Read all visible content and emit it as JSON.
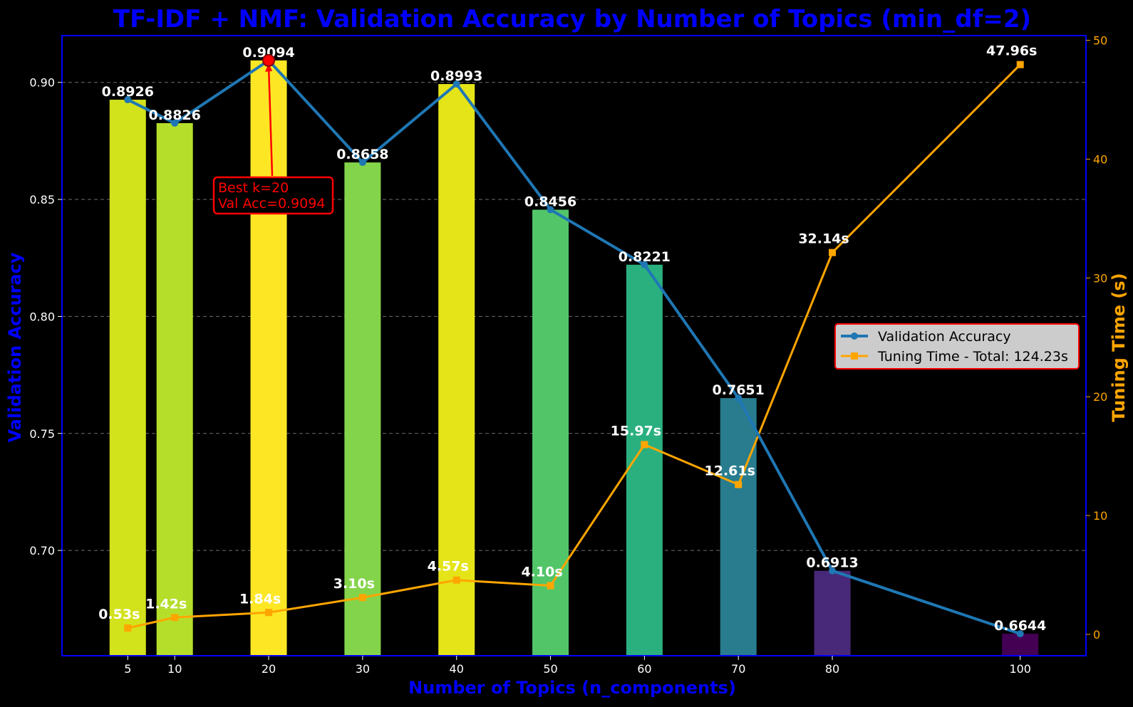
{
  "chart_data": {
    "type": "bar",
    "title": "TF-IDF + NMF: Validation Accuracy by Number of Topics (min_df=2)",
    "xlabel": "Number of Topics (n_components)",
    "ylabel": "Validation Accuracy",
    "y2label": "Tuning Time (s)",
    "x": [
      5,
      10,
      20,
      30,
      40,
      50,
      60,
      70,
      80,
      100
    ],
    "xticks": [
      "5",
      "10",
      "20",
      "30",
      "40",
      "50",
      "60",
      "70",
      "80",
      "100"
    ],
    "xlim": [
      -2,
      107
    ],
    "ylim": [
      0.655,
      0.92
    ],
    "y2lim": [
      -1.8,
      50.4
    ],
    "yticks": [
      "0.70",
      "0.75",
      "0.80",
      "0.85",
      "0.90"
    ],
    "ytick_values": [
      0.7,
      0.75,
      0.8,
      0.85,
      0.9
    ],
    "y2ticks": [
      "0",
      "10",
      "20",
      "30",
      "40",
      "50"
    ],
    "y2tick_values": [
      0,
      10,
      20,
      30,
      40,
      50
    ],
    "grid": "horizontal dashed",
    "legend_position": "center-right",
    "series": [
      {
        "name": "Validation Accuracy",
        "axis": "left",
        "values": [
          0.8926,
          0.8826,
          0.9094,
          0.8658,
          0.8993,
          0.8456,
          0.8221,
          0.7651,
          0.6913,
          0.6644
        ],
        "labels": [
          "0.8926",
          "0.8826",
          "0.9094",
          "0.8658",
          "0.8993",
          "0.8456",
          "0.8221",
          "0.7651",
          "0.6913",
          "0.6644"
        ],
        "color": "#1f77b4"
      },
      {
        "name": "Tuning Time - Total: 124.23s",
        "axis": "right",
        "values": [
          0.53,
          1.42,
          1.84,
          3.1,
          4.57,
          4.1,
          15.97,
          12.61,
          32.14,
          47.96
        ],
        "labels": [
          "0.53s",
          "1.42s",
          "1.84s",
          "3.10s",
          "4.57s",
          "4.10s",
          "15.97s",
          "12.61s",
          "32.14s",
          "47.96s"
        ],
        "color": "#ffa500"
      }
    ],
    "bar_colors": [
      "#d2e21b",
      "#b5de2b",
      "#fde725",
      "#84d44b",
      "#e4e419",
      "#52c569",
      "#2ab07f",
      "#287c8e",
      "#482878",
      "#440154"
    ],
    "annotation": {
      "lines": [
        "Best k=20",
        "Val Acc=0.9094"
      ],
      "x": 20,
      "y": 0.9094,
      "color": "#ff0000"
    },
    "colors": {
      "title": "#0000ff",
      "left_axis": "#0000ff",
      "right_axis": "#ffa500",
      "background": "#000000",
      "tick_text": "#ffffff"
    }
  }
}
